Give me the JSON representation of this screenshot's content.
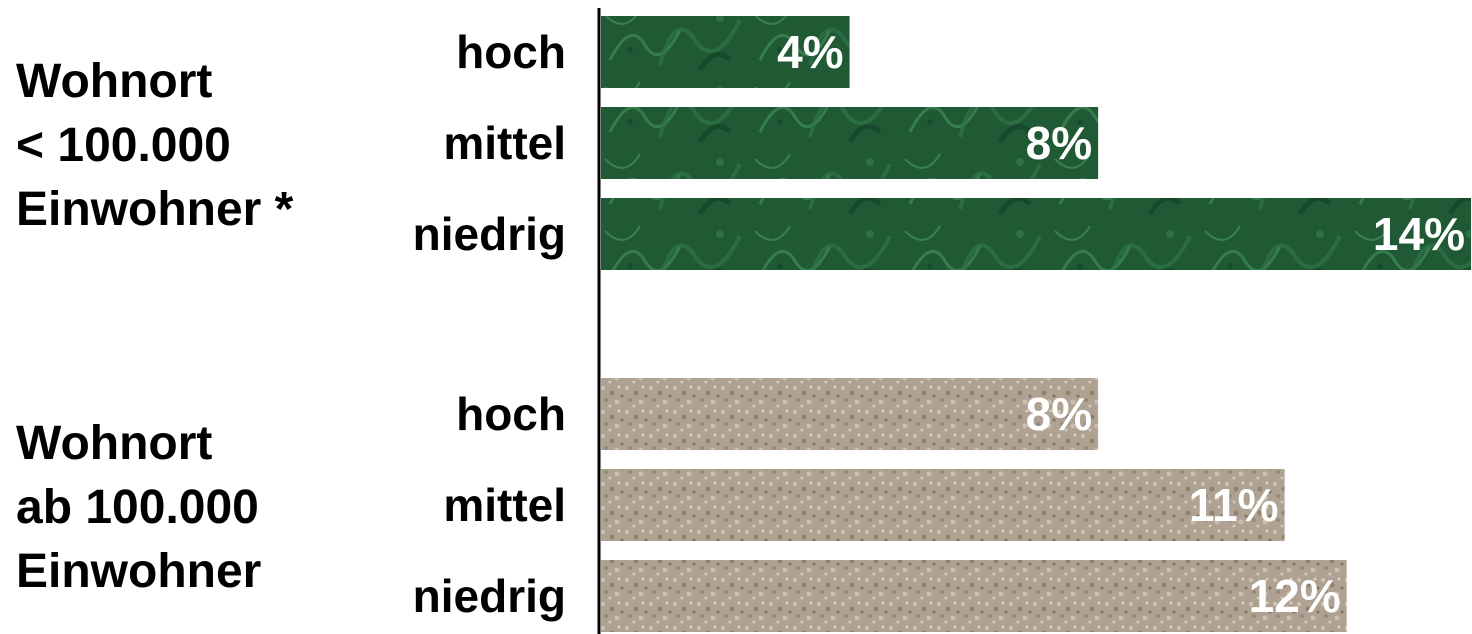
{
  "chart_data": {
    "type": "bar",
    "orientation": "horizontal",
    "xlim": [
      0,
      14
    ],
    "grid": false,
    "groups": [
      {
        "name": "Wohnort\n< 100.000\nEinwohner *",
        "color": "#1f5a35",
        "categories": [
          "hoch",
          "mittel",
          "niedrig"
        ],
        "values": [
          4,
          8,
          14
        ],
        "value_labels": [
          "4%",
          "8%",
          "14%"
        ]
      },
      {
        "name": "Wohnort\nab 100.000\nEinwohner",
        "color": "#b0a292",
        "categories": [
          "hoch",
          "mittel",
          "niedrig"
        ],
        "values": [
          8,
          11,
          12
        ],
        "value_labels": [
          "8%",
          "11%",
          "12%"
        ]
      }
    ]
  }
}
